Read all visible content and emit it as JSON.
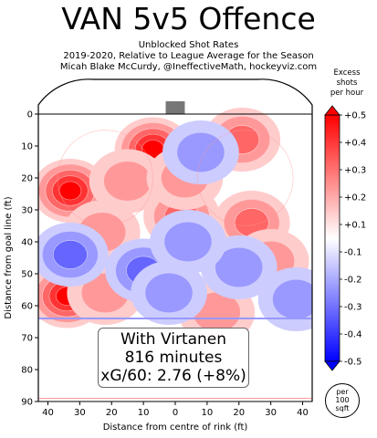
{
  "header": {
    "title": "VAN 5v5 Offence",
    "subtitle_1": "Unblocked Shot Rates",
    "subtitle_2": "2019-2020, Relative to League Average for the Season",
    "subtitle_3": "Micah Blake McCurdy, @IneffectiveMath, hockeyviz.com"
  },
  "info": {
    "line_1": "With Virtanen",
    "line_2": "816 minutes",
    "line_3": "xG/60: 2.76 (+8%)"
  },
  "colorbar": {
    "title": [
      "Excess",
      "shots",
      "per hour"
    ],
    "unit_note": [
      "per",
      "100",
      "sqft"
    ]
  },
  "colors": {
    "positive": "#ff0000",
    "negative": "#0000ff",
    "neutral": "#ffffff"
  },
  "chart_data": {
    "type": "heatmap",
    "title": "VAN 5v5 Offence",
    "xlabel": "Distance from centre of rink (ft)",
    "ylabel": "Distance from goal line (ft)",
    "xlim": [
      43,
      -43
    ],
    "ylim": [
      0,
      90
    ],
    "x_ticks": [
      "40",
      "30",
      "20",
      "10",
      "0",
      "10",
      "20",
      "30",
      "40"
    ],
    "x_tick_values": [
      40,
      30,
      20,
      10,
      0,
      -10,
      -20,
      -30,
      -40
    ],
    "y_ticks": [
      0,
      10,
      20,
      30,
      40,
      50,
      60,
      70,
      80,
      90
    ],
    "colorbar_ticks": [
      "+0.5",
      "+0.4",
      "+0.3",
      "+0.2",
      "+0.1",
      "-0.1",
      "-0.2",
      "-0.3",
      "-0.4",
      "-0.5"
    ],
    "colorbar_range": [
      -0.5,
      0.5
    ],
    "hotspots": [
      {
        "x": 33,
        "y": 24,
        "value": 0.5
      },
      {
        "x": 34,
        "y": 57,
        "value": 0.5
      },
      {
        "x": 7,
        "y": 11,
        "value": 0.5
      },
      {
        "x": -21,
        "y": 8,
        "value": 0.25
      },
      {
        "x": -2,
        "y": 32,
        "value": 0.25
      },
      {
        "x": -24,
        "y": 34,
        "value": 0.25
      },
      {
        "x": 23,
        "y": 37,
        "value": 0.15
      },
      {
        "x": -30,
        "y": 46,
        "value": 0.15
      },
      {
        "x": 22,
        "y": 56,
        "value": 0.12
      },
      {
        "x": 15,
        "y": 21,
        "value": 0.1
      },
      {
        "x": -13,
        "y": 62,
        "value": 0.1
      },
      {
        "x": -3,
        "y": 20,
        "value": 0.1
      },
      {
        "x": 33,
        "y": 44,
        "value": -0.3
      },
      {
        "x": 10,
        "y": 49,
        "value": -0.3
      },
      {
        "x": -8,
        "y": 12,
        "value": -0.2
      },
      {
        "x": -20,
        "y": 48,
        "value": -0.15
      },
      {
        "x": -38,
        "y": 58,
        "value": -0.2
      },
      {
        "x": 2,
        "y": 56,
        "value": -0.15
      },
      {
        "x": -4,
        "y": 40,
        "value": -0.12
      }
    ]
  }
}
